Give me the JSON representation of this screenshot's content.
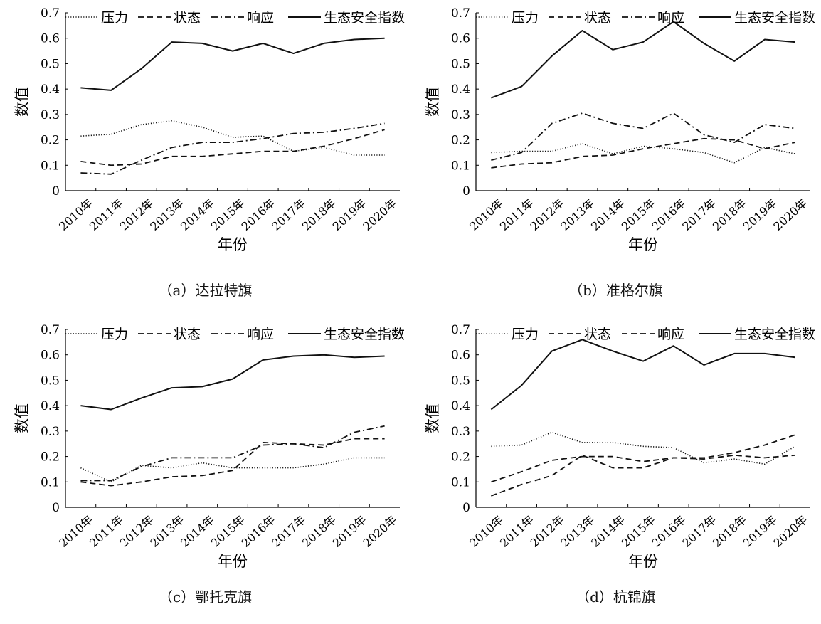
{
  "chart_data": [
    {
      "type": "line",
      "caption": "（a）达拉特旗",
      "categories": [
        "2010年",
        "2011年",
        "2012年",
        "2013年",
        "2014年",
        "2015年",
        "2016年",
        "2017年",
        "2018年",
        "2019年",
        "2020年"
      ],
      "xlabel": "年份",
      "ylabel": "数值",
      "ylim": [
        0,
        0.7
      ],
      "yticks": [
        "0",
        "0.1",
        "0.2",
        "0.3",
        "0.4",
        "0.5",
        "0.6",
        "0.7"
      ],
      "legend": "top",
      "series": [
        {
          "name": "压力",
          "style": "dotted",
          "values": [
            0.215,
            0.222,
            0.26,
            0.275,
            0.25,
            0.21,
            0.215,
            0.155,
            0.17,
            0.14,
            0.14
          ]
        },
        {
          "name": "状态",
          "style": "dashed",
          "values": [
            0.115,
            0.1,
            0.105,
            0.135,
            0.135,
            0.145,
            0.155,
            0.155,
            0.175,
            0.205,
            0.24
          ]
        },
        {
          "name": "响应",
          "style": "dashdot",
          "values": [
            0.07,
            0.065,
            0.12,
            0.17,
            0.19,
            0.19,
            0.205,
            0.225,
            0.23,
            0.245,
            0.265
          ]
        },
        {
          "name": "生态安全指数",
          "style": "solid",
          "values": [
            0.405,
            0.395,
            0.48,
            0.585,
            0.58,
            0.55,
            0.58,
            0.54,
            0.58,
            0.595,
            0.6
          ]
        }
      ]
    },
    {
      "type": "line",
      "caption": "（b）准格尔旗",
      "categories": [
        "2010年",
        "2011年",
        "2012年",
        "2013年",
        "2014年",
        "2015年",
        "2016年",
        "2017年",
        "2018年",
        "2019年",
        "2020年"
      ],
      "xlabel": "年份",
      "ylabel": "数值",
      "ylim": [
        0,
        0.7
      ],
      "yticks": [
        "0",
        "0.1",
        "0.2",
        "0.3",
        "0.4",
        "0.5",
        "0.6",
        "0.7"
      ],
      "legend": "top",
      "series": [
        {
          "name": "压力",
          "style": "dotted",
          "values": [
            0.15,
            0.155,
            0.155,
            0.185,
            0.145,
            0.175,
            0.165,
            0.15,
            0.11,
            0.17,
            0.145
          ]
        },
        {
          "name": "状态",
          "style": "dashed",
          "values": [
            0.09,
            0.105,
            0.11,
            0.135,
            0.14,
            0.165,
            0.185,
            0.205,
            0.2,
            0.165,
            0.19
          ]
        },
        {
          "name": "响应",
          "style": "dashdot",
          "values": [
            0.12,
            0.15,
            0.265,
            0.305,
            0.265,
            0.245,
            0.305,
            0.22,
            0.19,
            0.26,
            0.245
          ]
        },
        {
          "name": "生态安全指数",
          "style": "solid",
          "values": [
            0.365,
            0.41,
            0.53,
            0.63,
            0.555,
            0.585,
            0.665,
            0.58,
            0.51,
            0.595,
            0.585
          ]
        }
      ]
    },
    {
      "type": "line",
      "caption": "（c）鄂托克旗",
      "categories": [
        "2010年",
        "2011年",
        "2012年",
        "2013年",
        "2014年",
        "2015年",
        "2016年",
        "2017年",
        "2018年",
        "2019年",
        "2020年"
      ],
      "xlabel": "年份",
      "ylabel": "数值",
      "ylim": [
        0,
        0.7
      ],
      "yticks": [
        "0",
        "0.1",
        "0.2",
        "0.3",
        "0.4",
        "0.5",
        "0.6",
        "0.7"
      ],
      "legend": "top",
      "series": [
        {
          "name": "压力",
          "style": "dotted",
          "values": [
            0.155,
            0.1,
            0.165,
            0.155,
            0.175,
            0.155,
            0.155,
            0.155,
            0.17,
            0.195,
            0.195
          ]
        },
        {
          "name": "状态",
          "style": "dashed",
          "values": [
            0.1,
            0.085,
            0.1,
            0.12,
            0.125,
            0.145,
            0.255,
            0.25,
            0.245,
            0.27,
            0.27
          ]
        },
        {
          "name": "响应",
          "style": "dashdot",
          "values": [
            0.105,
            0.105,
            0.16,
            0.195,
            0.195,
            0.195,
            0.245,
            0.25,
            0.235,
            0.295,
            0.32
          ]
        },
        {
          "name": "生态安全指数",
          "style": "solid",
          "values": [
            0.4,
            0.385,
            0.43,
            0.47,
            0.475,
            0.505,
            0.58,
            0.595,
            0.6,
            0.59,
            0.595
          ]
        }
      ]
    },
    {
      "type": "line",
      "caption": "（d）杭锦旗",
      "categories": [
        "2010年",
        "2011年",
        "2012年",
        "2013年",
        "2014年",
        "2015年",
        "2016年",
        "2017年",
        "2018年",
        "2019年",
        "2020年"
      ],
      "xlabel": "年份",
      "ylabel": "数值",
      "ylim": [
        0,
        0.7
      ],
      "yticks": [
        "0",
        "0.1",
        "0.2",
        "0.3",
        "0.4",
        "0.5",
        "0.6",
        "0.7"
      ],
      "legend": "top",
      "series": [
        {
          "name": "压力",
          "style": "dotted",
          "values": [
            0.24,
            0.245,
            0.295,
            0.255,
            0.255,
            0.24,
            0.235,
            0.175,
            0.19,
            0.17,
            0.24
          ]
        },
        {
          "name": "状态",
          "style": "dashed",
          "values": [
            0.1,
            0.14,
            0.185,
            0.2,
            0.2,
            0.18,
            0.195,
            0.195,
            0.215,
            0.245,
            0.285
          ]
        },
        {
          "name": "响应",
          "style": "dashed",
          "values": [
            0.045,
            0.09,
            0.125,
            0.205,
            0.155,
            0.155,
            0.195,
            0.19,
            0.205,
            0.195,
            0.205
          ]
        },
        {
          "name": "生态安全指数",
          "style": "solid",
          "values": [
            0.385,
            0.48,
            0.615,
            0.66,
            0.615,
            0.575,
            0.635,
            0.56,
            0.605,
            0.605,
            0.59
          ]
        }
      ]
    }
  ]
}
